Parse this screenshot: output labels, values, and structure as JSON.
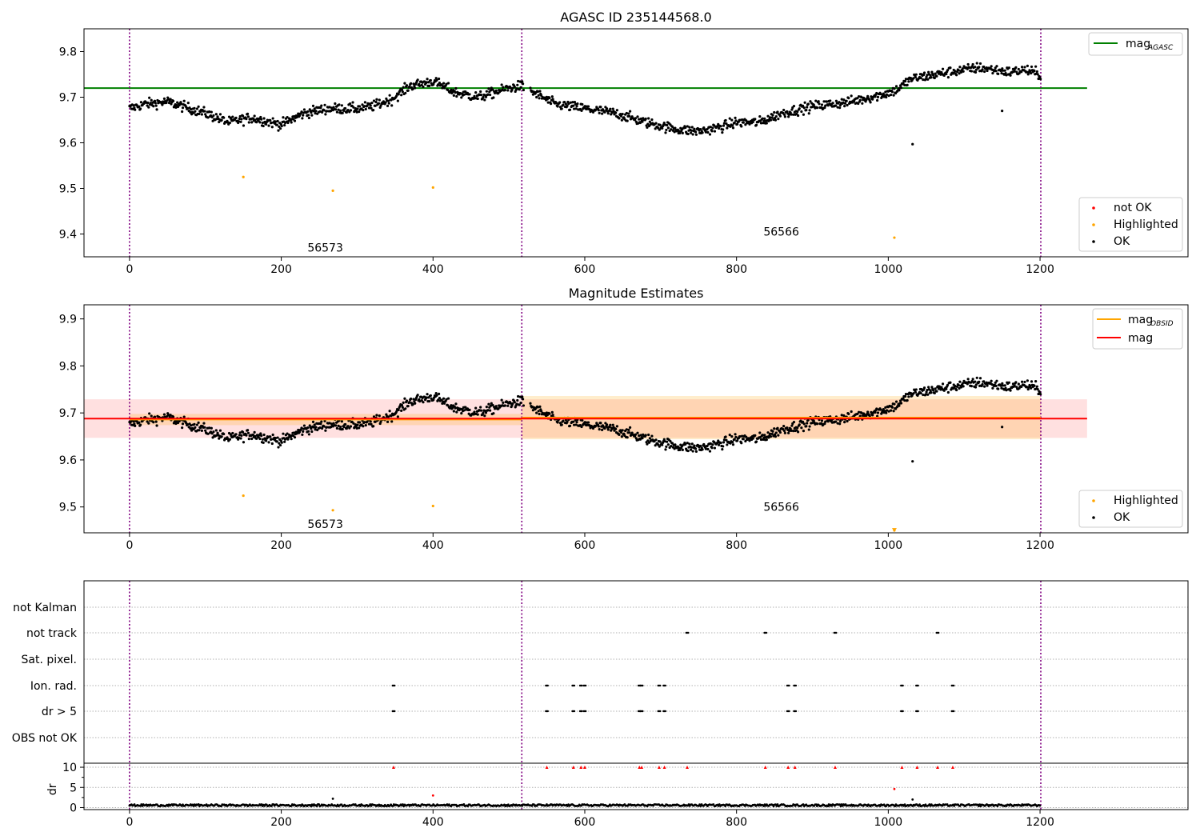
{
  "chart_data": [
    {
      "type": "scatter",
      "title": "AGASC ID 235144568.0",
      "xlim": [
        -60,
        1395
      ],
      "ylim": [
        9.35,
        9.85
      ],
      "xticks": [
        0,
        200,
        400,
        600,
        800,
        1000,
        1200
      ],
      "yticks": [
        9.4,
        9.5,
        9.6,
        9.7,
        9.8
      ],
      "obs_boundaries": [
        0,
        517,
        1201
      ],
      "obs_labels": [
        {
          "text": "56573",
          "x": 258,
          "y": 9.37
        },
        {
          "text": "56566",
          "x": 859,
          "y": 9.405
        }
      ],
      "mag_agasc": 9.72,
      "legend_lines": [
        {
          "name": "mag",
          "sub": "AGASC",
          "color": "#008000"
        }
      ],
      "legend_points": [
        {
          "name": "not OK",
          "color": "#ff0000"
        },
        {
          "name": "Highlighted",
          "color": "#ffa500"
        },
        {
          "name": "OK",
          "color": "#000000"
        }
      ],
      "highlighted": [
        [
          150,
          9.525
        ],
        [
          268,
          9.495
        ],
        [
          400,
          9.502
        ],
        [
          1008,
          9.392
        ]
      ],
      "outliers": [
        [
          1032,
          9.597
        ],
        [
          1150,
          9.67
        ]
      ]
    },
    {
      "type": "scatter",
      "title": "Magnitude Estimates",
      "xlim": [
        -60,
        1395
      ],
      "ylim": [
        9.445,
        9.93
      ],
      "xticks": [
        0,
        200,
        400,
        600,
        800,
        1000,
        1200
      ],
      "yticks": [
        9.5,
        9.6,
        9.7,
        9.8,
        9.9
      ],
      "obs_labels": [
        {
          "text": "56573",
          "x": 258,
          "y": 9.464
        },
        {
          "text": "56566",
          "x": 859,
          "y": 9.5
        }
      ],
      "mag": 9.688,
      "mag_band": [
        9.647,
        9.729
      ],
      "obsid_segments": [
        {
          "x0": 0,
          "x1": 517,
          "mag": 9.686,
          "band": [
            9.674,
            9.698
          ]
        },
        {
          "x0": 517,
          "x1": 1201,
          "mag": 9.69,
          "band": [
            9.644,
            9.736
          ]
        }
      ],
      "legend_lines": [
        {
          "name": "mag",
          "sub": "OBSID",
          "color": "#ffa500"
        },
        {
          "name": "mag",
          "sub": "",
          "color": "#ff0000"
        }
      ],
      "legend_points": [
        {
          "name": "Highlighted",
          "color": "#ffa500"
        },
        {
          "name": "OK",
          "color": "#000000"
        }
      ],
      "highlighted": [
        [
          150,
          9.524
        ],
        [
          268,
          9.493
        ],
        [
          400,
          9.502
        ],
        [
          1008,
          9.45
        ]
      ],
      "outliers": [
        [
          1032,
          9.597
        ],
        [
          1150,
          9.67
        ]
      ]
    },
    {
      "type": "scatter",
      "title": "",
      "xlim": [
        -60,
        1395
      ],
      "xticks": [
        0,
        200,
        400,
        600,
        800,
        1000,
        1200
      ],
      "flag_rows": [
        "not Kalman",
        "not track",
        "Sat. pixel.",
        "Ion. rad.",
        "dr > 5",
        "OBS not OK"
      ],
      "flags": {
        "not Kalman": [],
        "not track": [
          735,
          838,
          930,
          1065
        ],
        "Sat. pixel.": [],
        "Ion. rad.": [
          348,
          550,
          585,
          595,
          600,
          672,
          675,
          698,
          705,
          868,
          877,
          1018,
          1038,
          1085
        ],
        "dr > 5": [
          348,
          550,
          585,
          595,
          600,
          672,
          675,
          698,
          705,
          868,
          877,
          1018,
          1038,
          1085
        ],
        "OBS not OK": []
      },
      "dr": {
        "ylabel": "dr",
        "ylim": [
          -0.5,
          11
        ],
        "yticks": [
          0,
          5,
          10
        ],
        "capped_red": [
          348,
          550,
          585,
          595,
          600,
          672,
          675,
          698,
          705,
          735,
          838,
          868,
          877,
          930,
          1018,
          1038,
          1065,
          1085
        ],
        "extra_red": [
          [
            400,
            3.0
          ],
          [
            1008,
            4.6
          ]
        ],
        "extra_black": [
          [
            268,
            2.2
          ],
          [
            1032,
            2.0
          ]
        ]
      }
    }
  ]
}
